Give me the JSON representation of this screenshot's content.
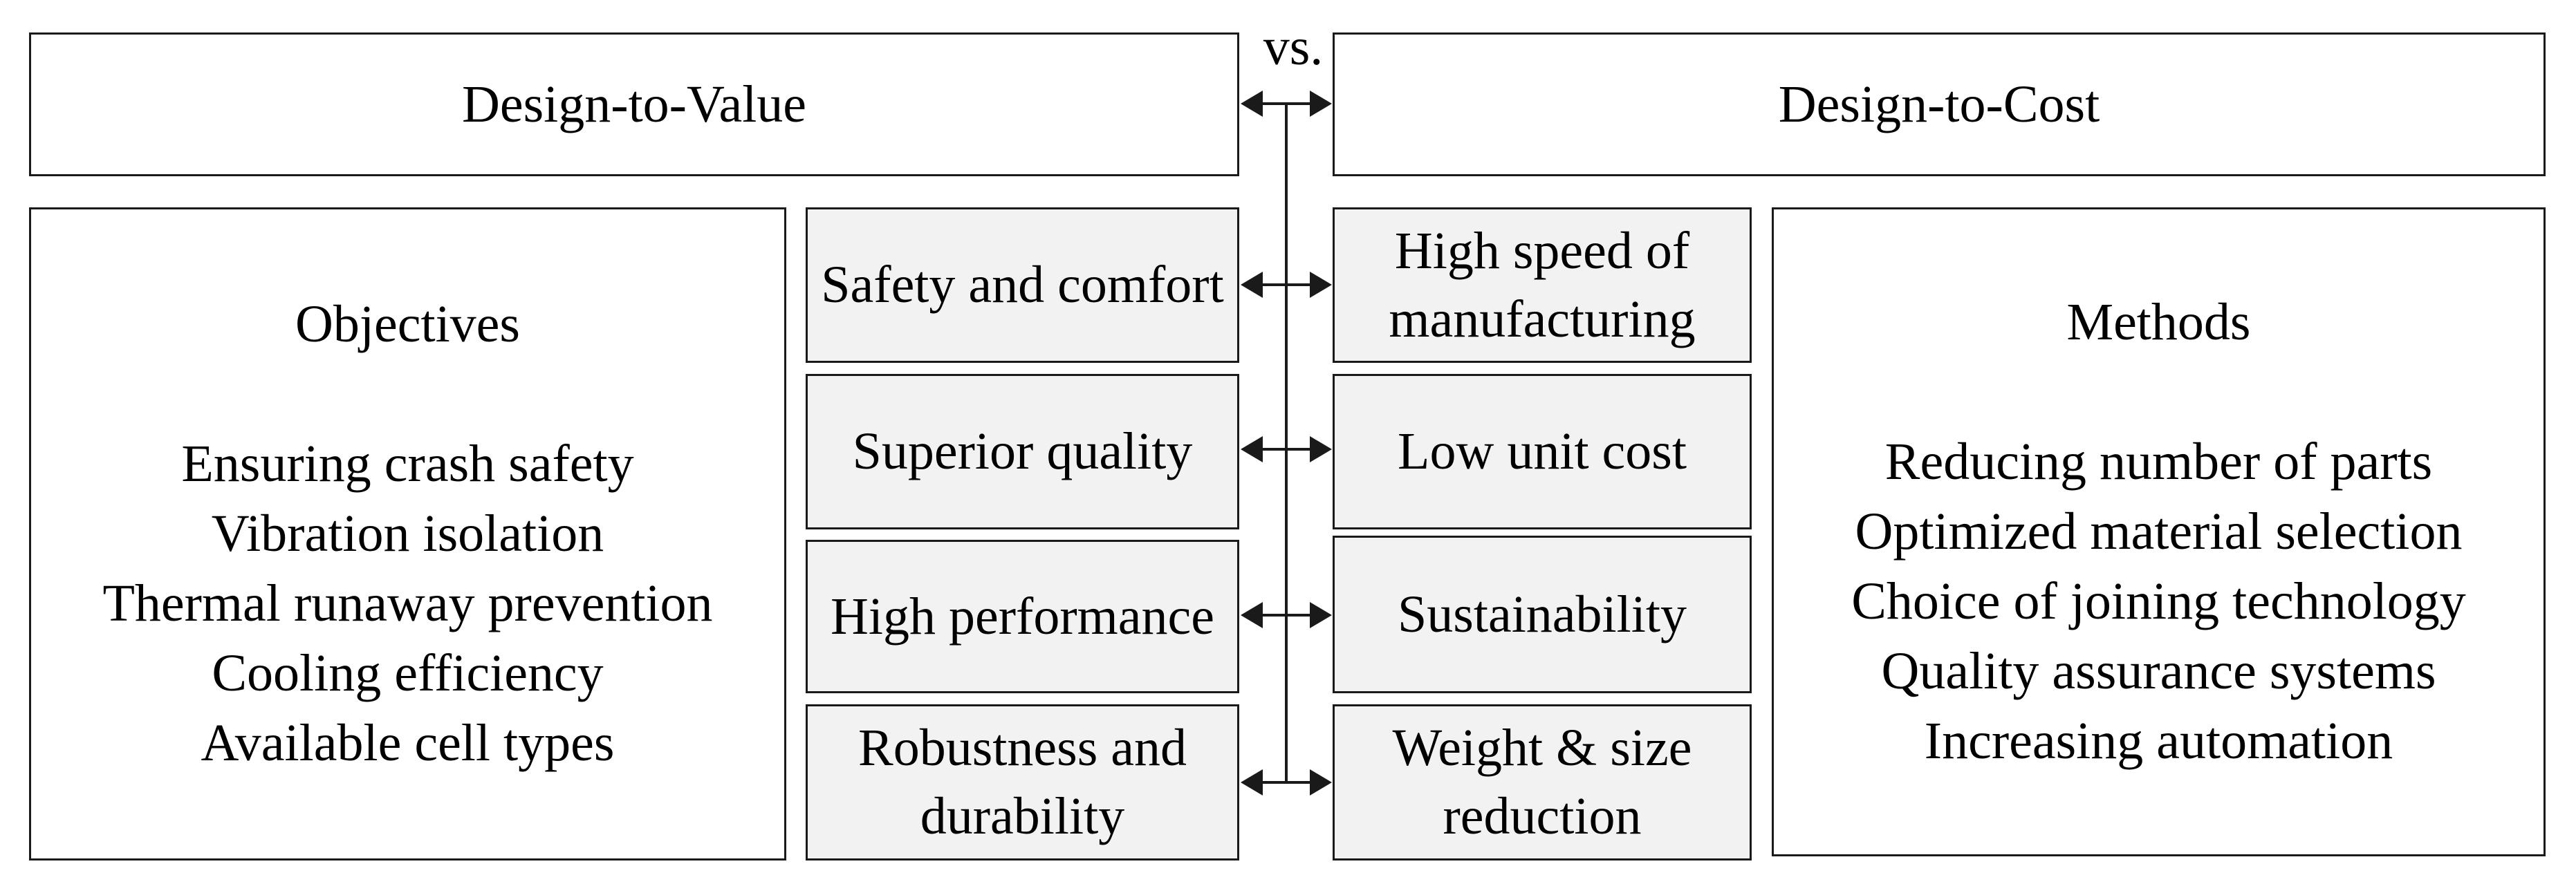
{
  "vs_label": "vs.",
  "design_to_value": {
    "header": "Design-to-Value",
    "objectives": {
      "title": "Objectives",
      "items": [
        "Ensuring crash safety",
        "Vibration isolation",
        "Thermal runaway prevention",
        "Cooling efficiency",
        "Available cell types"
      ]
    },
    "value_items": [
      "Safety and comfort",
      "Superior quality",
      "High performance",
      "Robustness and durability"
    ]
  },
  "design_to_cost": {
    "header": "Design-to-Cost",
    "methods": {
      "title": "Methods",
      "items": [
        "Reducing number of parts",
        "Optimized material selection",
        "Choice of joining technology",
        "Quality assurance systems",
        "Increasing automation"
      ]
    },
    "cost_items": [
      "High speed of manufacturing",
      "Low unit cost",
      "Sustainability",
      "Weight & size reduction"
    ]
  },
  "colors": {
    "border": "#1a1a1a",
    "item_fill": "#f2f2f2",
    "background": "#ffffff"
  }
}
